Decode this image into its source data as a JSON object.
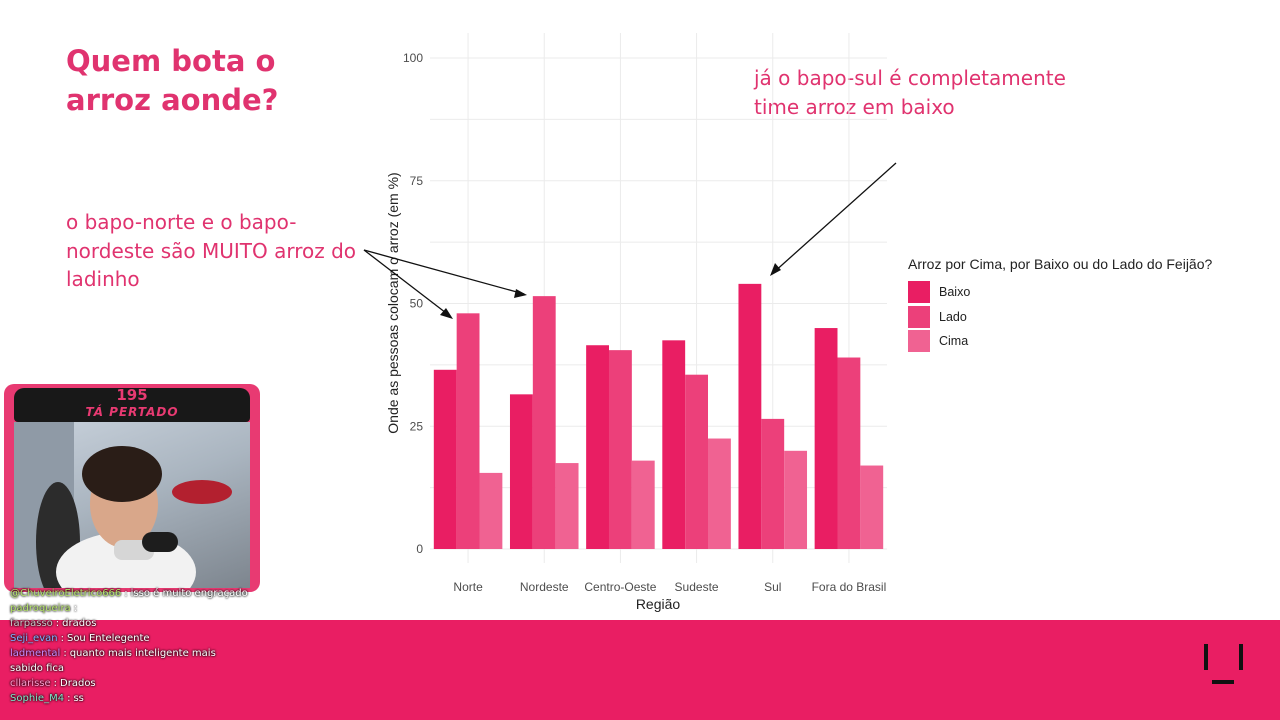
{
  "slide": {
    "title": "Quem bota o arroz aonde?",
    "note_left": "o bapo-norte e o bapo-nordeste são MUITO arroz do ladinho",
    "note_right": "já o bapo-sul é completamente time arroz em baixo"
  },
  "chart_data": {
    "type": "bar",
    "categories": [
      "Norte",
      "Nordeste",
      "Centro-Oeste",
      "Sudeste",
      "Sul",
      "Fora do Brasil"
    ],
    "series": [
      {
        "name": "Baixo",
        "color": "#e91e63",
        "values": [
          36.5,
          31.5,
          41.5,
          42.5,
          54,
          45
        ]
      },
      {
        "name": "Lado",
        "color": "#ec407a",
        "values": [
          48,
          51.5,
          40.5,
          35.5,
          26.5,
          39
        ]
      },
      {
        "name": "Cima",
        "color": "#f06292",
        "values": [
          15.5,
          17.5,
          18,
          22.5,
          20,
          17
        ]
      }
    ],
    "xlabel": "Região",
    "ylabel": "Onde as pessoas colocam o arroz (em %)",
    "ylim": [
      0,
      100
    ],
    "yticks": [
      "0",
      "25",
      "50",
      "75",
      "100"
    ],
    "legend_title": "Arroz por Cima, por Baixo ou do Lado do Feijão?",
    "legend_position": "right",
    "grid": true
  },
  "webcam": {
    "count": "195",
    "caption": "TÁ PERTADO"
  },
  "chat": [
    {
      "user": "@ChuveiroEletrico666",
      "user_color": "#b6e36b",
      "message": "isso é muito engraçado"
    },
    {
      "user": "padroqueira",
      "user_color": "#b6e36b",
      "message": ""
    },
    {
      "user": "farpasso",
      "user_color": "#c9c9c9",
      "message": "drados"
    },
    {
      "user": "Seji_evan",
      "user_color": "#7fb2ff",
      "message": "Sou Entelegente"
    },
    {
      "user": "ladmental",
      "user_color": "#c78bff",
      "message": "quanto mais inteligente mais"
    },
    {
      "user": "",
      "user_color": "#ffffff",
      "message": "sabido fica"
    },
    {
      "user": "cllarisse",
      "user_color": "#ff9ccf",
      "message": "Drados"
    },
    {
      "user": "Sophie_M4",
      "user_color": "#7fe6c9",
      "message": "ss"
    }
  ]
}
